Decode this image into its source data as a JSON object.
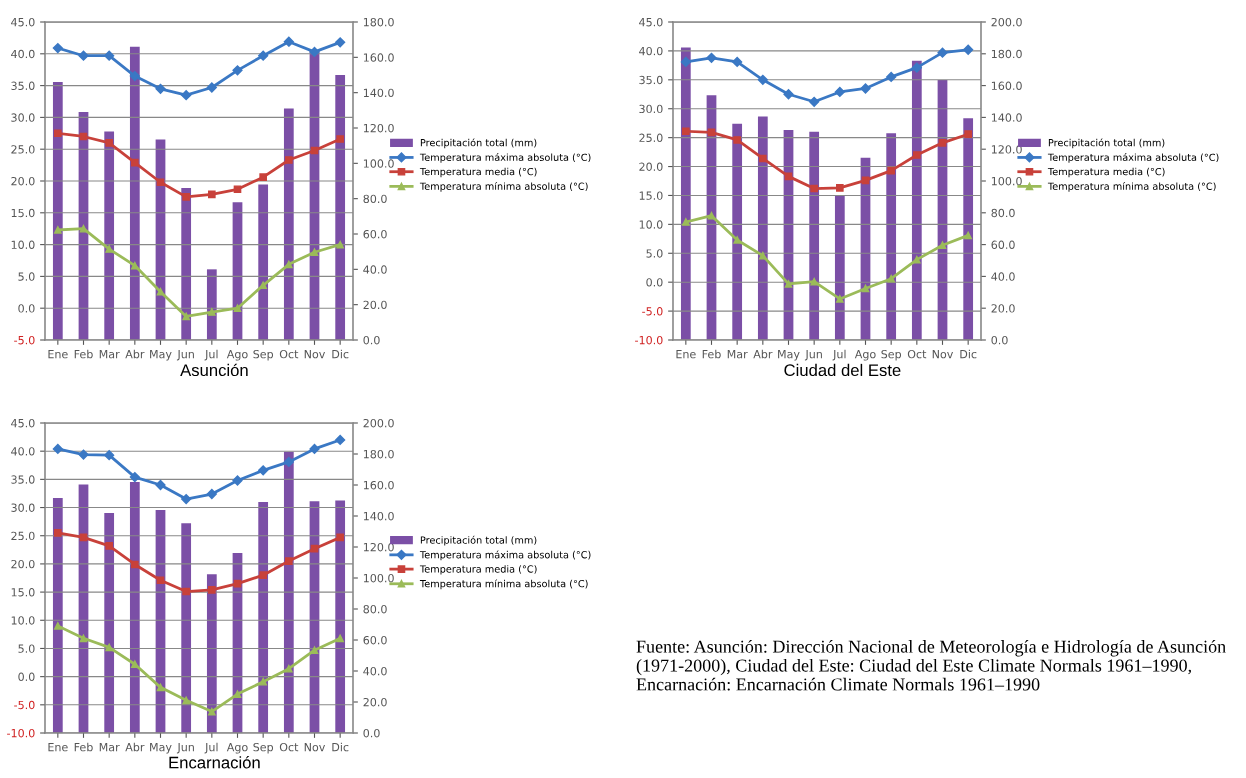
{
  "chart_data": [
    {
      "type": "bar",
      "xlabel": "Asunción",
      "categories": [
        "Ene",
        "Feb",
        "Mar",
        "Abr",
        "May",
        "Jun",
        "Jul",
        "Ago",
        "Sep",
        "Oct",
        "Nov",
        "Dic"
      ],
      "series": [
        {
          "name": "Precipitación total (mm)",
          "type": "bar",
          "axis": "y2",
          "color": "#7b4fa6",
          "values": [
            146,
            129,
            118,
            166,
            113.5,
            86,
            40,
            78,
            88,
            131,
            164,
            150
          ]
        },
        {
          "name": "Temperatura máxima absoluta (°C)",
          "type": "line",
          "marker": "diamond",
          "color": "#3a78c4",
          "values": [
            40.9,
            39.7,
            39.7,
            36.5,
            34.5,
            33.5,
            34.7,
            37.4,
            39.7,
            41.9,
            40.3,
            41.8
          ]
        },
        {
          "name": "Temperatura media (°C)",
          "type": "line",
          "marker": "square",
          "color": "#c8413a",
          "values": [
            27.5,
            27.0,
            26.0,
            22.9,
            19.8,
            17.5,
            17.9,
            18.7,
            20.6,
            23.3,
            24.8,
            26.6
          ]
        },
        {
          "name": "Temperatura mínima absoluta (°C)",
          "type": "line",
          "marker": "triangle",
          "color": "#9bbb59",
          "values": [
            12.3,
            12.5,
            9.3,
            6.7,
            2.6,
            -1.3,
            -0.6,
            0.0,
            3.6,
            6.9,
            8.8,
            10.0
          ]
        }
      ],
      "ylim": [
        -5,
        45
      ],
      "yticks": [
        {
          "value": -5,
          "label": "-5.0"
        },
        {
          "value": 0,
          "label": "0.0"
        },
        {
          "value": 5,
          "label": "5.0"
        },
        {
          "value": 10,
          "label": "10.0"
        },
        {
          "value": 15,
          "label": "15.0"
        },
        {
          "value": 20,
          "label": "20.0"
        },
        {
          "value": 25,
          "label": "25.0"
        },
        {
          "value": 30,
          "label": "30.0"
        },
        {
          "value": 35,
          "label": "35.0"
        },
        {
          "value": 40,
          "label": "40.0"
        },
        {
          "value": 45,
          "label": "45.0"
        }
      ],
      "y2lim": [
        0,
        180
      ],
      "y2ticks": [
        {
          "value": 0,
          "label": "0.0"
        },
        {
          "value": 20,
          "label": "20.0"
        },
        {
          "value": 40,
          "label": "40.0"
        },
        {
          "value": 60,
          "label": "60.0"
        },
        {
          "value": 80,
          "label": "80.0"
        },
        {
          "value": 100,
          "label": "100.0"
        },
        {
          "value": 120,
          "label": "120.0"
        },
        {
          "value": 140,
          "label": "140.0"
        },
        {
          "value": 160,
          "label": "160.0"
        },
        {
          "value": 180,
          "label": "180.0"
        }
      ],
      "grid": "y",
      "legend": "right"
    },
    {
      "type": "bar",
      "xlabel": "Ciudad del Este",
      "categories": [
        "Ene",
        "Feb",
        "Mar",
        "Abr",
        "May",
        "Jun",
        "Jul",
        "Ago",
        "Sep",
        "Oct",
        "Nov",
        "Dic"
      ],
      "series": [
        {
          "name": "Precipitación total (mm)",
          "type": "bar",
          "axis": "y2",
          "color": "#7b4fa6",
          "values": [
            184,
            154,
            136,
            140.5,
            132,
            131,
            91,
            114.6,
            130,
            175.7,
            163.6,
            139.5
          ]
        },
        {
          "name": "Temperatura máxima absoluta (°C)",
          "type": "line",
          "marker": "diamond",
          "color": "#3a78c4",
          "values": [
            38.1,
            38.8,
            38.1,
            35.0,
            32.5,
            31.2,
            32.9,
            33.5,
            35.5,
            37.1,
            39.7,
            40.2
          ]
        },
        {
          "name": "Temperatura media (°C)",
          "type": "line",
          "marker": "square",
          "color": "#c8413a",
          "values": [
            26.1,
            25.9,
            24.6,
            21.4,
            18.3,
            16.2,
            16.3,
            17.6,
            19.3,
            22.0,
            24.1,
            25.6
          ]
        },
        {
          "name": "Temperatura mínima absoluta (°C)",
          "type": "line",
          "marker": "triangle",
          "color": "#9bbb59",
          "values": [
            10.4,
            11.5,
            7.3,
            4.6,
            -0.3,
            0.1,
            -2.9,
            -1.1,
            0.6,
            3.9,
            6.4,
            8.1
          ]
        }
      ],
      "ylim": [
        -10,
        45
      ],
      "yticks": [
        {
          "value": -10,
          "label": "-10.0"
        },
        {
          "value": -5,
          "label": "-5.0"
        },
        {
          "value": 0,
          "label": "0.0"
        },
        {
          "value": 5,
          "label": "5.0"
        },
        {
          "value": 10,
          "label": "10.0"
        },
        {
          "value": 15,
          "label": "15.0"
        },
        {
          "value": 20,
          "label": "20.0"
        },
        {
          "value": 25,
          "label": "25.0"
        },
        {
          "value": 30,
          "label": "30.0"
        },
        {
          "value": 35,
          "label": "35.0"
        },
        {
          "value": 40,
          "label": "40.0"
        },
        {
          "value": 45,
          "label": "45.0"
        }
      ],
      "y2lim": [
        0,
        200
      ],
      "y2ticks": [
        {
          "value": 0,
          "label": "0.0"
        },
        {
          "value": 20,
          "label": "20.0"
        },
        {
          "value": 40,
          "label": "40.0"
        },
        {
          "value": 60,
          "label": "60.0"
        },
        {
          "value": 80,
          "label": "80.0"
        },
        {
          "value": 100,
          "label": "100.0"
        },
        {
          "value": 120,
          "label": "120.0"
        },
        {
          "value": 140,
          "label": "140.0"
        },
        {
          "value": 160,
          "label": "160.0"
        },
        {
          "value": 180,
          "label": "180.0"
        },
        {
          "value": 200,
          "label": "200.0"
        }
      ],
      "grid": "y",
      "legend": "right"
    },
    {
      "type": "bar",
      "xlabel": "Encarnación",
      "categories": [
        "Ene",
        "Feb",
        "Mar",
        "Abr",
        "May",
        "Jun",
        "Jul",
        "Ago",
        "Sep",
        "Oct",
        "Nov",
        "Dic"
      ],
      "series": [
        {
          "name": "Precipitación total (mm)",
          "type": "bar",
          "axis": "y2",
          "color": "#7b4fa6",
          "values": [
            151.6,
            160.4,
            142,
            162,
            143.8,
            135.4,
            102.5,
            116.2,
            149,
            181.5,
            149.5,
            150
          ]
        },
        {
          "name": "Temperatura máxima absoluta (°C)",
          "type": "line",
          "marker": "diamond",
          "color": "#3a78c4",
          "values": [
            40.4,
            39.4,
            39.3,
            35.4,
            34.0,
            31.5,
            32.4,
            34.8,
            36.6,
            38.1,
            40.4,
            42.0
          ]
        },
        {
          "name": "Temperatura media (°C)",
          "type": "line",
          "marker": "square",
          "color": "#c8413a",
          "values": [
            25.5,
            24.7,
            23.2,
            19.9,
            17.1,
            15.1,
            15.4,
            16.5,
            18.0,
            20.5,
            22.7,
            24.7
          ]
        },
        {
          "name": "Temperatura mínima absoluta (°C)",
          "type": "line",
          "marker": "triangle",
          "color": "#9bbb59",
          "values": [
            9.0,
            6.8,
            5.2,
            2.2,
            -1.9,
            -4.2,
            -6.2,
            -3.1,
            -0.9,
            1.4,
            4.7,
            6.8
          ]
        }
      ],
      "ylim": [
        -10,
        45
      ],
      "yticks": [
        {
          "value": -10,
          "label": "-10.0"
        },
        {
          "value": -5,
          "label": "-5.0"
        },
        {
          "value": 0,
          "label": "0.0"
        },
        {
          "value": 5,
          "label": "5.0"
        },
        {
          "value": 10,
          "label": "10.0"
        },
        {
          "value": 15,
          "label": "15.0"
        },
        {
          "value": 20,
          "label": "20.0"
        },
        {
          "value": 25,
          "label": "25.0"
        },
        {
          "value": 30,
          "label": "30.0"
        },
        {
          "value": 35,
          "label": "35.0"
        },
        {
          "value": 40,
          "label": "40.0"
        },
        {
          "value": 45,
          "label": "45.0"
        }
      ],
      "y2lim": [
        0,
        200
      ],
      "y2ticks": [
        {
          "value": 0,
          "label": "0.0"
        },
        {
          "value": 20,
          "label": "20.0"
        },
        {
          "value": 40,
          "label": "40.0"
        },
        {
          "value": 60,
          "label": "60.0"
        },
        {
          "value": 80,
          "label": "80.0"
        },
        {
          "value": 100,
          "label": "100.0"
        },
        {
          "value": 120,
          "label": "120.0"
        },
        {
          "value": 140,
          "label": "140.0"
        },
        {
          "value": 160,
          "label": "160.0"
        },
        {
          "value": 180,
          "label": "180.0"
        },
        {
          "value": 200,
          "label": "200.0"
        }
      ],
      "grid": "y",
      "legend": "right",
      "annotations": [
        "Fuente: Asunción: Dirección Nacional de Meteorología e Hidrología de Asunción (1971-2000), Ciudad del Este: Ciudad del Este Climate Normals 1961–1990, Encarnación: Encarnación Climate Normals 1961–1990"
      ]
    }
  ]
}
